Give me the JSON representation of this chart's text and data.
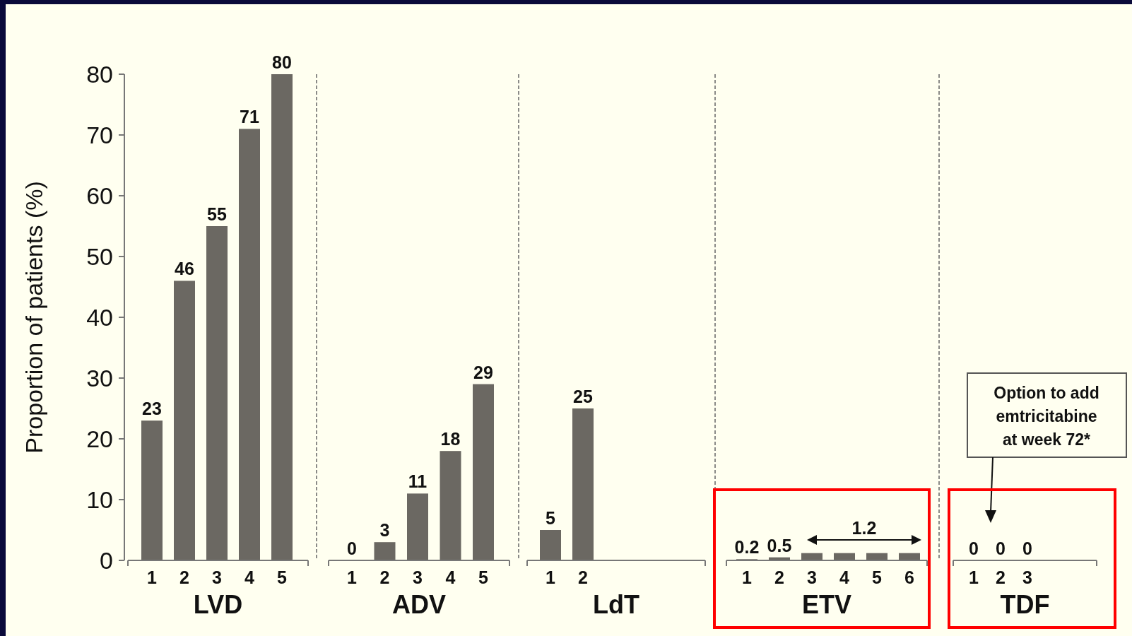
{
  "chart_data": [
    {
      "type": "bar",
      "xlabel": "LVD",
      "ylabel": "Proportion of patients (%)",
      "categories": [
        "1",
        "2",
        "3",
        "4",
        "5"
      ],
      "values": [
        23,
        46,
        55,
        71,
        80
      ],
      "color": "#6b6862",
      "ylim": [
        0,
        80
      ],
      "yticks": [
        0,
        10,
        20,
        30,
        40,
        50,
        60,
        70,
        80
      ],
      "data_labels": true
    },
    {
      "type": "bar",
      "xlabel": "ADV",
      "categories": [
        "1",
        "2",
        "3",
        "4",
        "5"
      ],
      "values": [
        0,
        3,
        11,
        18,
        29
      ],
      "color": "#6b6862",
      "ylim": [
        0,
        80
      ],
      "data_labels": true,
      "tick_labels": "x"
    },
    {
      "type": "bar",
      "xlabel": "LdT",
      "categories": [
        "1",
        "2"
      ],
      "values": [
        5,
        25
      ],
      "color": "#6b6862",
      "ylim": [
        0,
        80
      ],
      "data_labels": true,
      "tick_labels": "x"
    },
    {
      "type": "bar",
      "xlabel": "ETV",
      "categories": [
        "1",
        "2",
        "3",
        "4",
        "5",
        "6"
      ],
      "values": [
        0.2,
        0.5,
        1.2,
        1.2,
        1.2,
        1.2
      ],
      "value_labels": [
        "0.2",
        "0.5",
        null,
        null,
        null,
        null
      ],
      "color": "#6b6862",
      "ylim": [
        0,
        80
      ],
      "annotations": [
        "1.2"
      ],
      "tick_labels": "x"
    },
    {
      "type": "bar",
      "xlabel": "TDF",
      "categories": [
        "1",
        "2",
        "3"
      ],
      "values": [
        0,
        0,
        0
      ],
      "color": "#6b6862",
      "ylim": [
        0,
        80
      ],
      "data_labels": true,
      "annotations": [
        "Option to add emtricitabine at week 72*"
      ],
      "tick_labels": "x"
    }
  ]
}
